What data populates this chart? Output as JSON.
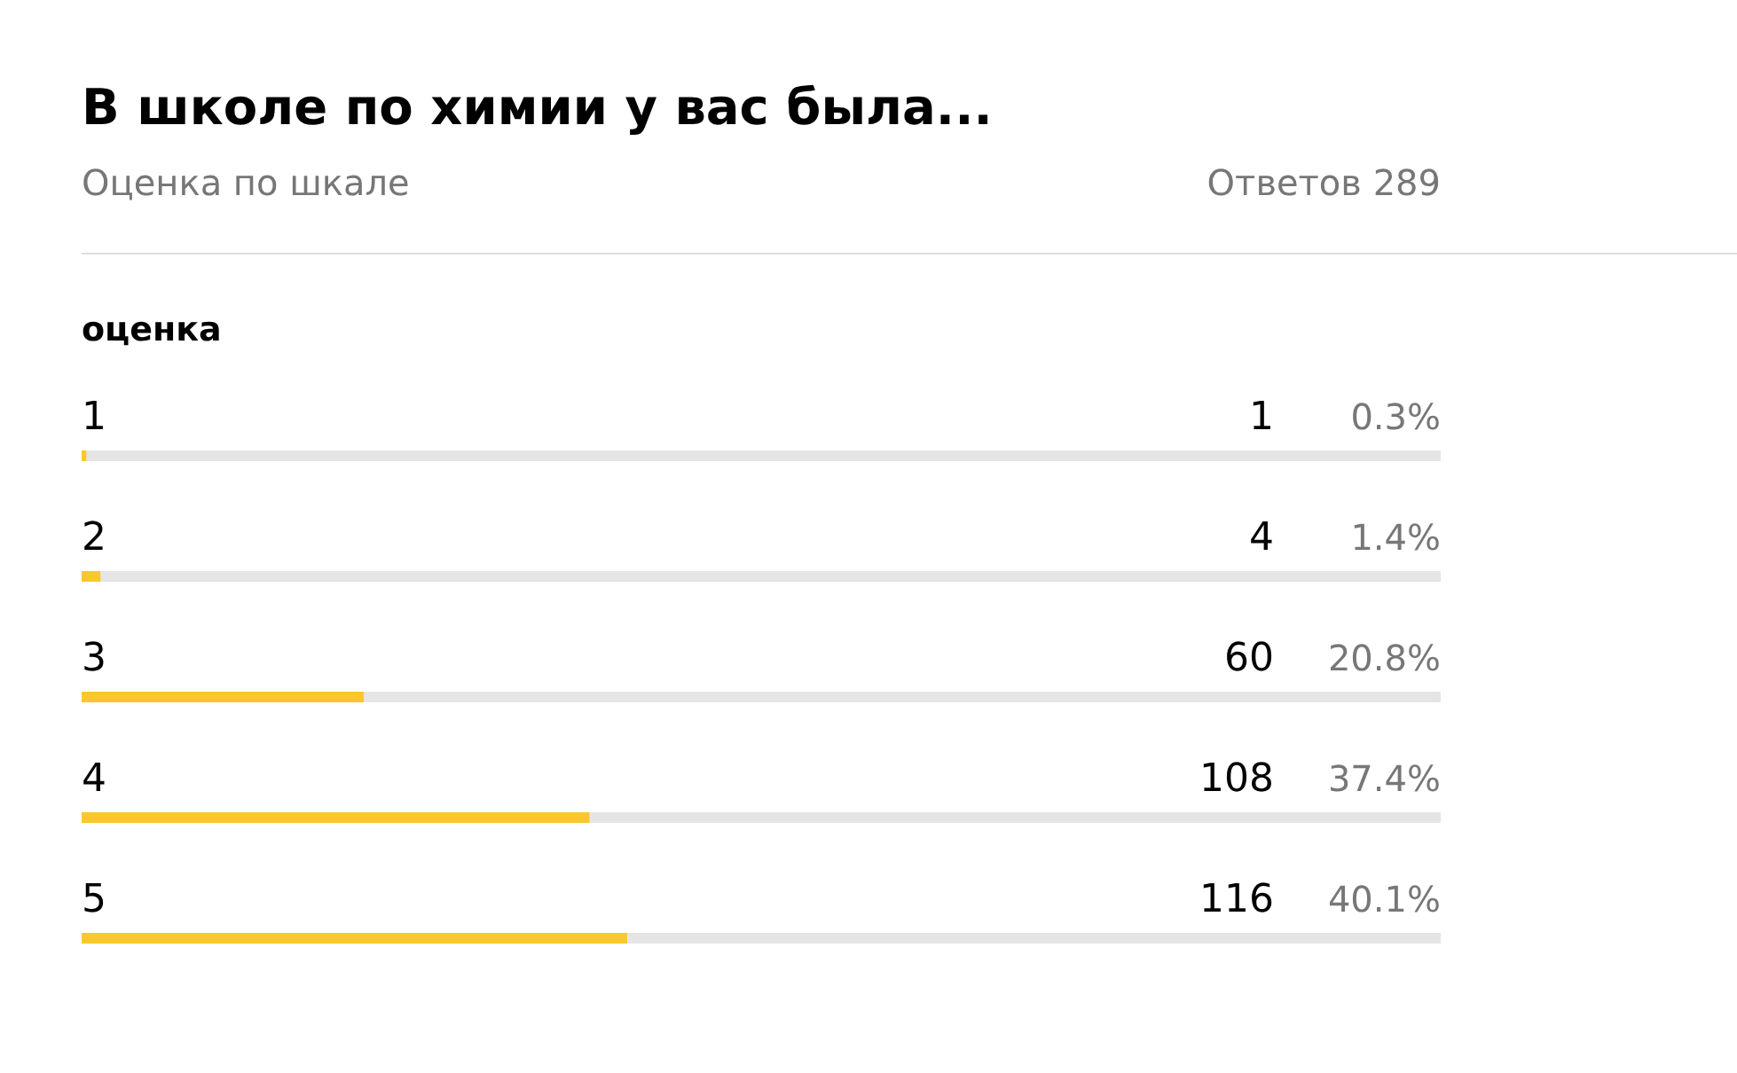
{
  "chart_data": {
    "type": "bar",
    "orientation": "horizontal",
    "title": "В школе по химии у вас была...",
    "subtitle": "Оценка по шкале",
    "ylabel": "оценка",
    "categories": [
      "1",
      "2",
      "3",
      "4",
      "5"
    ],
    "values": [
      1,
      4,
      60,
      108,
      116
    ],
    "color": "#fcc72c",
    "data_labels": true,
    "xlim": [
      0,
      289
    ],
    "tick_labels": false,
    "annotations": [
      "Ответов 289",
      "0.3%",
      "1.4%",
      "20.8%",
      "37.4%",
      "40.1%"
    ]
  }
}
